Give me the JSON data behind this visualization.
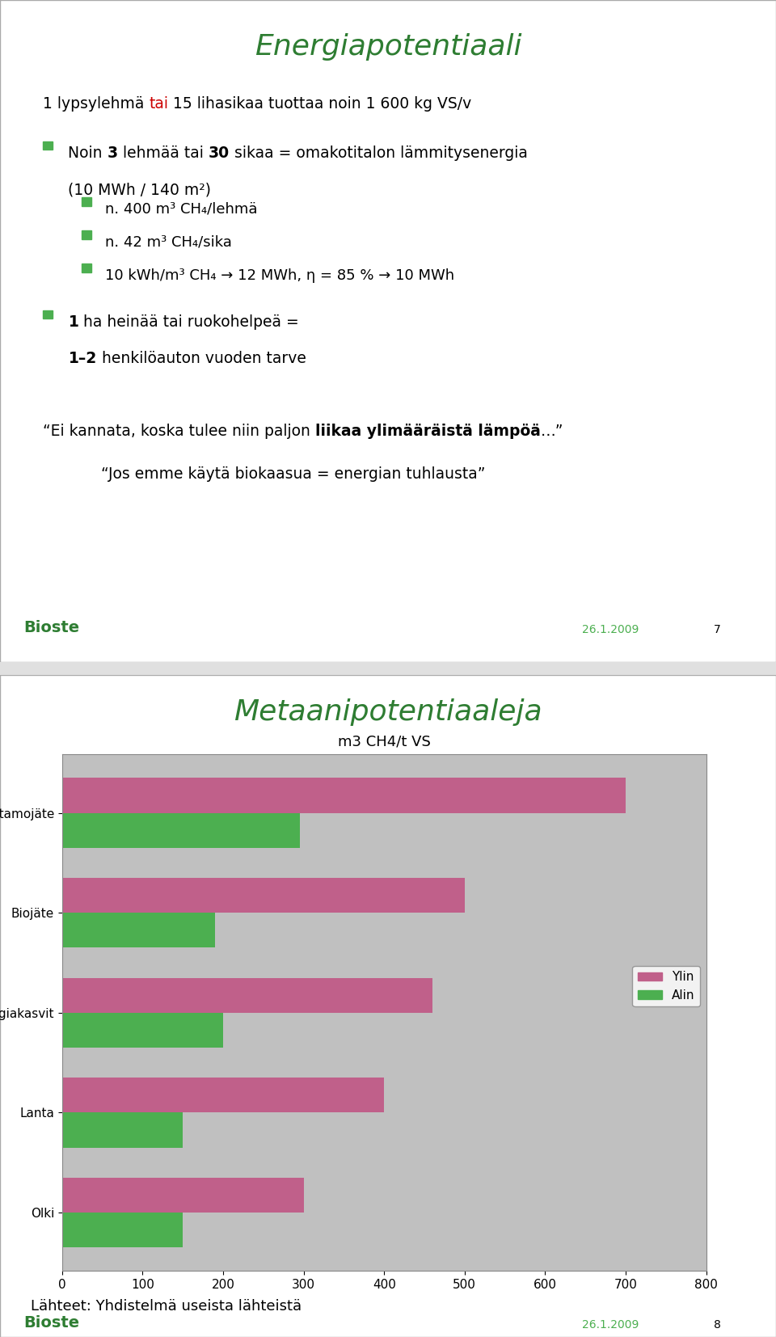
{
  "slide1": {
    "title": "Energiapotentiaali",
    "title_color": "#2e7d32",
    "bg_color": "#ffffff",
    "line1": "1 lypsylehmä tai 15 lihasikaa tuottaa noin 1 600 kg VS/v",
    "line1_color": "#000000",
    "line1_tai_color": "#cc0000",
    "bullets": [
      {
        "level": 1,
        "text_parts": [
          {
            "text": "Noin ",
            "bold": false
          },
          {
            "text": "3",
            "bold": true
          },
          {
            "text": " lehmää tai ",
            "bold": false
          },
          {
            "text": "30",
            "bold": true
          },
          {
            "text": " sikaa = omakotitalon lämmitysenergia\n(10 MWh / 140 m²)",
            "bold": false
          }
        ]
      },
      {
        "level": 2,
        "text_parts": [
          {
            "text": "n. 400 m³ CH₄/lehmä",
            "bold": false
          }
        ]
      },
      {
        "level": 2,
        "text_parts": [
          {
            "text": "n. 42 m³ CH₄/sika",
            "bold": false
          }
        ]
      },
      {
        "level": 2,
        "text_parts": [
          {
            "text": "10 kWh/m³ CH₄ → 12 MWh, η = 85 % → 10 MWh",
            "bold": false
          }
        ]
      },
      {
        "level": 1,
        "text_parts": [
          {
            "text": "1",
            "bold": true
          },
          {
            "text": " ha heinää tai ruokohelpeä =\n",
            "bold": false
          },
          {
            "text": "1–2",
            "bold": true
          },
          {
            "text": " henkilöauton vuoden tarve",
            "bold": false
          }
        ]
      }
    ],
    "quote1": "\"Ei kannata, koska tulee niin paljon ",
    "quote1_bold": "liikaa ylimääräistä lämpöä",
    "quote1_end": "…\"",
    "quote2": "\"Jos emme käytä biokaasua = energian tuhlausta\"",
    "footer_logo": "Bioste",
    "footer_date": "26.1.2009",
    "footer_page": "7",
    "green_color": "#2e7d32"
  },
  "slide2": {
    "title": "Metaanipotentiaaleja",
    "title_color": "#2e7d32",
    "bg_color": "#ffffff",
    "chart_title": "m3 CH4/t VS",
    "categories": [
      "Teurastamojäte",
      "Biojäte",
      "Energiakasvit",
      "Lanta",
      "Olki"
    ],
    "ylin_values": [
      700,
      500,
      460,
      400,
      300
    ],
    "alin_values": [
      295,
      190,
      200,
      150,
      150
    ],
    "ylin_color": "#c0608a",
    "alin_color": "#4caf50",
    "chart_bg": "#c0c0c0",
    "xlim": [
      0,
      800
    ],
    "xticks": [
      0,
      100,
      200,
      300,
      400,
      500,
      600,
      700,
      800
    ],
    "footer_text": "Lähteet: Yhdistelmä useista lähteistä",
    "footer_logo": "Bioste",
    "footer_date": "26.1.2009",
    "footer_page": "8",
    "green_color": "#2e7d32",
    "bullet_green": "#4caf50"
  }
}
